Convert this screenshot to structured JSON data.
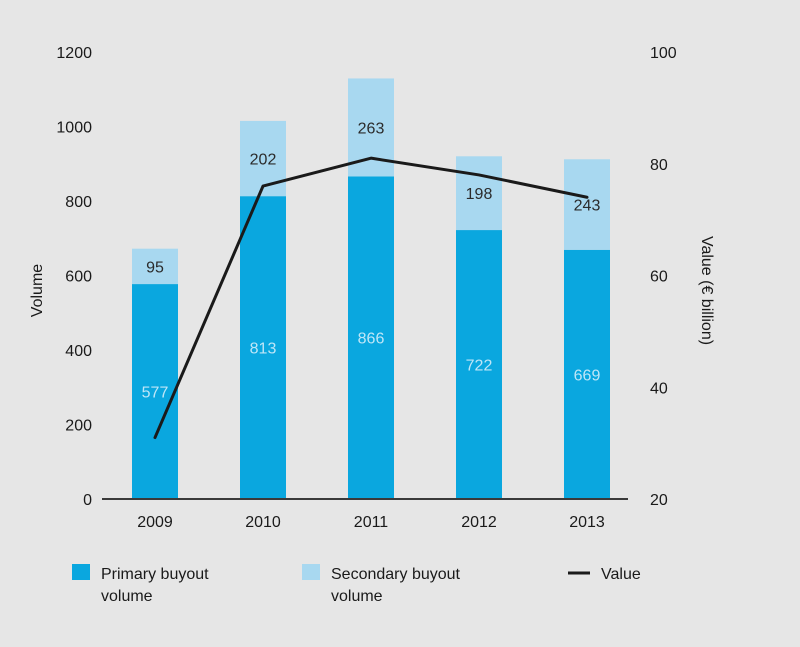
{
  "chart_data": {
    "type": "bar",
    "stacked": true,
    "categories": [
      "2009",
      "2010",
      "2011",
      "2012",
      "2013"
    ],
    "series": [
      {
        "name": "Primary buyout volume",
        "values": [
          577,
          813,
          866,
          722,
          669
        ],
        "color": "#0aa7df",
        "axis": "left"
      },
      {
        "name": "Secondary buyout volume",
        "values": [
          95,
          202,
          263,
          198,
          243
        ],
        "color": "#a8d8f0",
        "axis": "left"
      }
    ],
    "line_series": {
      "name": "Value",
      "values": [
        31,
        76,
        81,
        78,
        74
      ],
      "color": "#1a1a1a",
      "axis": "right"
    },
    "y_left": {
      "label": "Volume",
      "lim": [
        0,
        1200
      ],
      "ticks": [
        "0",
        "200",
        "400",
        "600",
        "800",
        "1000",
        "1200"
      ]
    },
    "y_right": {
      "label": "Value (€ billion)",
      "lim": [
        20,
        100
      ],
      "ticks": [
        "20",
        "40",
        "60",
        "80",
        "100"
      ]
    },
    "xlabel": "",
    "legend": {
      "position": "bottom",
      "items": [
        {
          "lines": [
            "Primary buyout",
            "volume"
          ],
          "color": "#0aa7df",
          "kind": "box"
        },
        {
          "lines": [
            "Secondary buyout",
            "volume"
          ],
          "color": "#a8d8f0",
          "kind": "box"
        },
        {
          "lines": [
            "Value"
          ],
          "color": "#1a1a1a",
          "kind": "line"
        }
      ]
    }
  }
}
